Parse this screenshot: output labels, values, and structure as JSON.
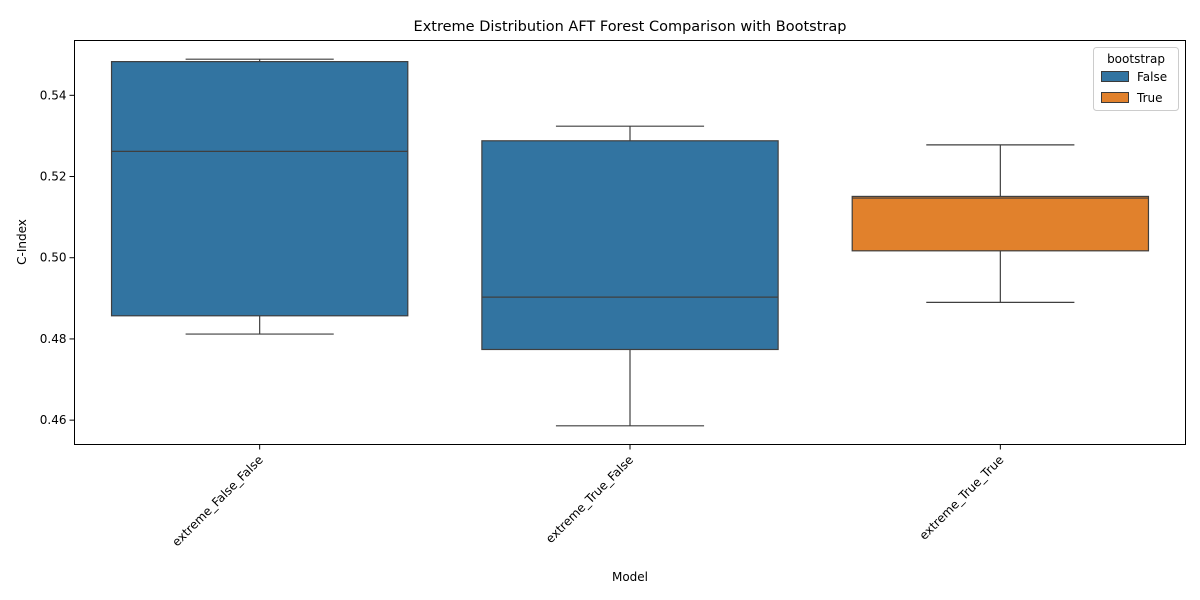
{
  "chart_data": {
    "type": "box",
    "title": "Extreme Distribution AFT Forest Comparison with Bootstrap",
    "xlabel": "Model",
    "ylabel": "C-Index",
    "ylim": [
      0.454,
      0.5535
    ],
    "yticks": [
      0.46,
      0.48,
      0.5,
      0.52,
      0.54
    ],
    "ytick_labels": [
      "0.46",
      "0.48",
      "0.50",
      "0.52",
      "0.54"
    ],
    "categories": [
      "extreme_False_False",
      "extreme_True_False",
      "extreme_True_True"
    ],
    "legend": {
      "title": "bootstrap",
      "position": "top-right",
      "entries": [
        {
          "label": "False",
          "color": "#3274a1"
        },
        {
          "label": "True",
          "color": "#e1812c"
        }
      ]
    },
    "boxes": [
      {
        "category": "extreme_False_False",
        "bootstrap": "False",
        "color": "#3274a1",
        "whisker_low": 0.4812,
        "q1": 0.4857,
        "median": 0.5262,
        "q3": 0.5483,
        "whisker_high": 0.5489
      },
      {
        "category": "extreme_True_False",
        "bootstrap": "False",
        "color": "#3274a1",
        "whisker_low": 0.4586,
        "q1": 0.4774,
        "median": 0.4903,
        "q3": 0.5288,
        "whisker_high": 0.5324
      },
      {
        "category": "extreme_True_True",
        "bootstrap": "True",
        "color": "#e1812c",
        "whisker_low": 0.489,
        "q1": 0.5017,
        "median": 0.5147,
        "q3": 0.5151,
        "whisker_high": 0.5278
      }
    ],
    "grid": false
  }
}
